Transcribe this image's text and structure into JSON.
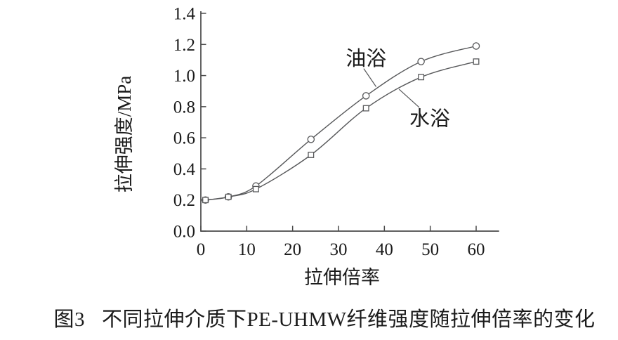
{
  "figure": {
    "caption_label": "图3",
    "caption_text": "不同拉伸介质下PE-UHMW纤维强度随拉伸倍率的变化"
  },
  "chart_data": {
    "type": "line",
    "title": "",
    "xlabel": "拉伸倍率",
    "ylabel": "拉伸强度/MPa",
    "x": [
      1,
      6,
      12,
      24,
      36,
      48,
      60
    ],
    "series": [
      {
        "name": "油浴",
        "marker": "circle",
        "values": [
          0.2,
          0.22,
          0.29,
          0.59,
          0.87,
          1.09,
          1.19
        ]
      },
      {
        "name": "水浴",
        "marker": "square",
        "values": [
          0.2,
          0.22,
          0.27,
          0.49,
          0.79,
          0.99,
          1.09
        ]
      }
    ],
    "xlim": [
      0,
      65
    ],
    "ylim": [
      0.0,
      1.4
    ],
    "xticks": [
      0,
      10,
      20,
      30,
      40,
      50,
      60
    ],
    "yticks": [
      0.0,
      0.2,
      0.4,
      0.6,
      0.8,
      1.0,
      1.2,
      1.4
    ],
    "ytick_decimals": 1,
    "grid": false,
    "legend_position": "inline-annotations",
    "annotations": [
      {
        "text": "油浴",
        "series": "油浴",
        "label_x": 36.0,
        "label_y": 1.11,
        "leader": {
          "x1": 35.5,
          "y1": 1.045,
          "x2": 38.2,
          "y2": 0.928
        }
      },
      {
        "text": "水浴",
        "series": "水浴",
        "label_x": 49.9,
        "label_y": 0.725,
        "leader": {
          "x1": 43.2,
          "y1": 0.912,
          "x2": 47.6,
          "y2": 0.795
        }
      }
    ],
    "colors": {
      "line": "#58595b",
      "axis": "#4a4a4a",
      "text": "#1b1b1b",
      "marker_fill": "#ffffff",
      "background": "#ffffff"
    }
  }
}
